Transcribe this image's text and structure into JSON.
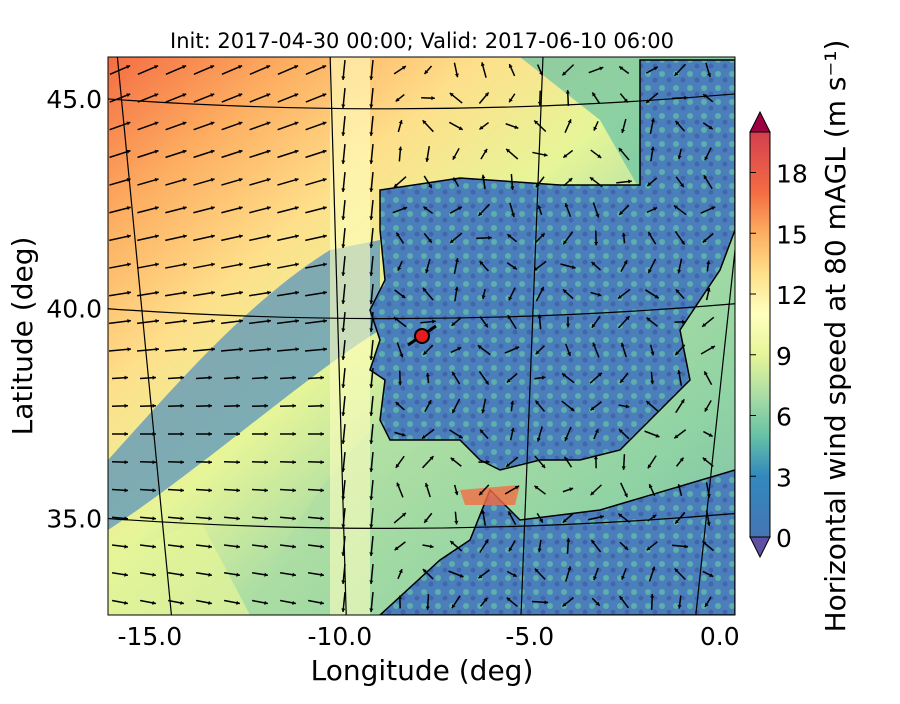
{
  "chart_data": {
    "type": "map",
    "title": "Init: 2017-04-30 00:00; Valid: 2017-06-10 06:00",
    "xlabel": "Longitude (deg)",
    "ylabel": "Latitude (deg)",
    "xlim": [
      -16.1,
      0.4
    ],
    "ylim": [
      32.7,
      46.0
    ],
    "xticks": [
      {
        "value": -15,
        "label": "-15.0"
      },
      {
        "value": -10,
        "label": "-10.0"
      },
      {
        "value": -5,
        "label": "-5.0"
      },
      {
        "value": 0,
        "label": "0.0"
      }
    ],
    "yticks": [
      {
        "value": 35,
        "label": "35.0"
      },
      {
        "value": 40,
        "label": "40.0"
      },
      {
        "value": 45,
        "label": "45.0"
      }
    ],
    "colorbar": {
      "label": "Horizontal wind speed at 80 mAGL (m s⁻¹)",
      "clim": [
        0,
        20
      ],
      "ticks": [
        0,
        3,
        6,
        9,
        12,
        15,
        18
      ]
    },
    "grid": true
  }
}
